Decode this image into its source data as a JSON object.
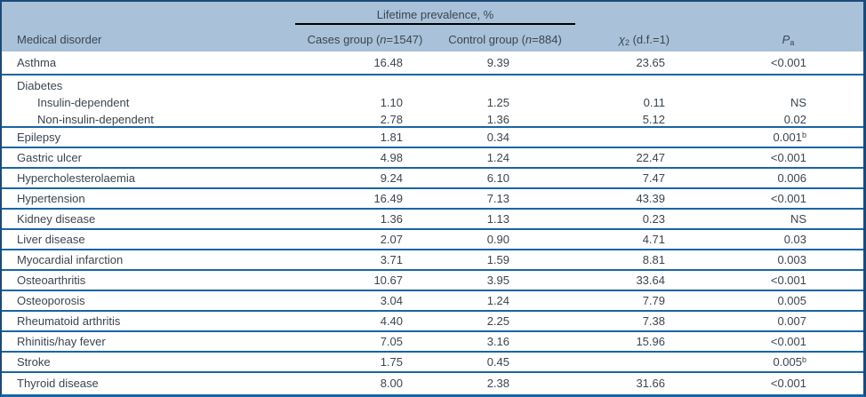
{
  "header": {
    "lifetime_prevalence": "Lifetime prevalence, %",
    "medical_disorder": "Medical disorder",
    "cases_pre": "Cases group (",
    "n": "n",
    "cases_post": "=1547)",
    "control_pre": "Control group (",
    "control_post": "=884)",
    "chi": "χ",
    "chi_sup": "2",
    "chi_rest": " (d.f.=1)",
    "p": "P",
    "p_sup": "a"
  },
  "colors": {
    "header_bg": "#a9c2da",
    "outer_border": "#1c4a77",
    "row_divider": "#1765a6",
    "prevalence_rule": "#000000",
    "text": "#3a4550"
  },
  "table": {
    "rows": [
      {
        "disorder": "Asthma",
        "cases": "16.48",
        "control": "9.39",
        "chi2": "23.65",
        "p": "<0.001",
        "p_sup": ""
      },
      {
        "disorder": "Diabetes",
        "sub_rows": [
          {
            "disorder": "Insulin-dependent",
            "cases": "1.10",
            "control": "1.25",
            "chi2": "0.11",
            "p": "NS",
            "p_sup": ""
          },
          {
            "disorder": "Non-insulin-dependent",
            "cases": "2.78",
            "control": "1.36",
            "chi2": "5.12",
            "p": "0.02",
            "p_sup": ""
          }
        ]
      },
      {
        "disorder": "Epilepsy",
        "cases": "1.81",
        "control": "0.34",
        "chi2": "",
        "p": "0.001",
        "p_sup": "b"
      },
      {
        "disorder": "Gastric ulcer",
        "cases": "4.98",
        "control": "1.24",
        "chi2": "22.47",
        "p": "<0.001",
        "p_sup": ""
      },
      {
        "disorder": "Hypercholesterolaemia",
        "cases": "9.24",
        "control": "6.10",
        "chi2": "7.47",
        "p": "0.006",
        "p_sup": ""
      },
      {
        "disorder": "Hypertension",
        "cases": "16.49",
        "control": "7.13",
        "chi2": "43.39",
        "p": "<0.001",
        "p_sup": ""
      },
      {
        "disorder": "Kidney disease",
        "cases": "1.36",
        "control": "1.13",
        "chi2": "0.23",
        "p": "NS",
        "p_sup": ""
      },
      {
        "disorder": "Liver disease",
        "cases": "2.07",
        "control": "0.90",
        "chi2": "4.71",
        "p": "0.03",
        "p_sup": ""
      },
      {
        "disorder": "Myocardial infarction",
        "cases": "3.71",
        "control": "1.59",
        "chi2": "8.81",
        "p": "0.003",
        "p_sup": ""
      },
      {
        "disorder": "Osteoarthritis",
        "cases": "10.67",
        "control": "3.95",
        "chi2": "33.64",
        "p": "<0.001",
        "p_sup": ""
      },
      {
        "disorder": "Osteoporosis",
        "cases": "3.04",
        "control": "1.24",
        "chi2": "7.79",
        "p": "0.005",
        "p_sup": ""
      },
      {
        "disorder": "Rheumatoid arthritis",
        "cases": "4.40",
        "control": "2.25",
        "chi2": "7.38",
        "p": "0.007",
        "p_sup": ""
      },
      {
        "disorder": "Rhinitis/hay fever",
        "cases": "7.05",
        "control": "3.16",
        "chi2": "15.96",
        "p": "<0.001",
        "p_sup": ""
      },
      {
        "disorder": "Stroke",
        "cases": "1.75",
        "control": "0.45",
        "chi2": "",
        "p": "0.005",
        "p_sup": "b"
      },
      {
        "disorder": "Thyroid disease",
        "cases": "8.00",
        "control": "2.38",
        "chi2": "31.66",
        "p": "<0.001",
        "p_sup": ""
      }
    ]
  }
}
